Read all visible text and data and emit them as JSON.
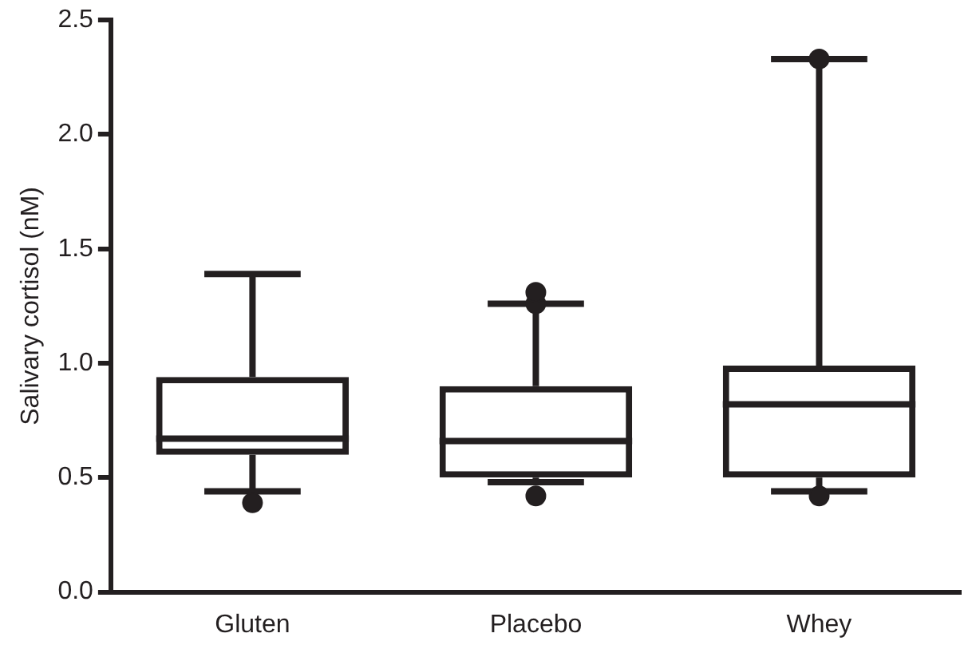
{
  "chart_data": {
    "type": "box",
    "ylabel": "Salivary cortisol (nM)",
    "categories": [
      "Gluten",
      "Placebo",
      "Whey"
    ],
    "boxes": [
      {
        "low": 0.44,
        "q1": 0.6,
        "median": 0.67,
        "q3": 0.94,
        "high": 1.39,
        "outliers": [
          0.39
        ]
      },
      {
        "low": 0.48,
        "q1": 0.5,
        "median": 0.66,
        "q3": 0.9,
        "high": 1.26,
        "outliers": [
          0.42,
          1.26,
          1.31
        ]
      },
      {
        "low": 0.44,
        "q1": 0.5,
        "median": 0.82,
        "q3": 0.99,
        "high": 2.33,
        "outliers": [
          0.42,
          2.33
        ]
      }
    ],
    "color": "#231f20",
    "ylim": [
      0,
      2.5
    ],
    "yticks": [
      {
        "value": 0,
        "label": "0.0"
      },
      {
        "value": 0.5,
        "label": "0.5"
      },
      {
        "value": 1,
        "label": "1.0"
      },
      {
        "value": 1.5,
        "label": "1.5"
      },
      {
        "value": 2,
        "label": "2.0"
      },
      {
        "value": 2.5,
        "label": "2.5"
      }
    ],
    "grid": false,
    "legend": false
  }
}
